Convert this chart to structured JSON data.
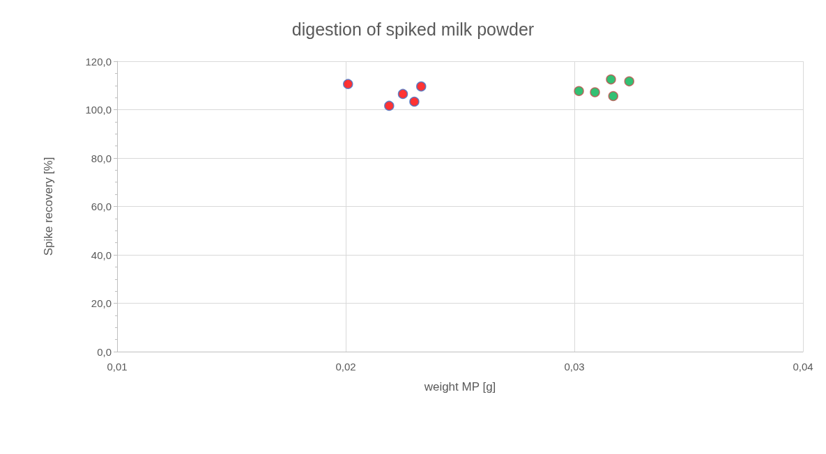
{
  "chart_data": {
    "type": "scatter",
    "title": "digestion of spiked milk powder",
    "xlabel": "weight MP [g]",
    "ylabel": "Spike recovery [%]",
    "series": [
      {
        "color": "#ff0000",
        "x": [
          0.0201,
          0.0219,
          0.0225,
          0.023,
          0.0233
        ],
        "values": [
          110.6,
          101.6,
          106.5,
          103.3,
          109.6
        ]
      },
      {
        "color": "#00b050",
        "x": [
          0.0302,
          0.0309,
          0.0316,
          0.0317,
          0.0324
        ],
        "values": [
          107.7,
          107.2,
          112.5,
          105.6,
          111.7
        ]
      }
    ],
    "xlim": [
      0.01,
      0.04
    ],
    "xticks": [
      {
        "value": 0.01,
        "label": "0,01"
      },
      {
        "value": 0.02,
        "label": "0,02"
      },
      {
        "value": 0.03,
        "label": "0,03"
      },
      {
        "value": 0.04,
        "label": "0,04"
      }
    ],
    "ylim": [
      0,
      120
    ],
    "yticks": [
      {
        "value": 0,
        "label": "0,0"
      },
      {
        "value": 20,
        "label": "20,0"
      },
      {
        "value": 40,
        "label": "40,0"
      },
      {
        "value": 60,
        "label": "60,0"
      },
      {
        "value": 80,
        "label": "80,0"
      },
      {
        "value": 100,
        "label": "100,0"
      },
      {
        "value": 120,
        "label": "120,0"
      }
    ],
    "grid": true,
    "marker": "circle"
  }
}
